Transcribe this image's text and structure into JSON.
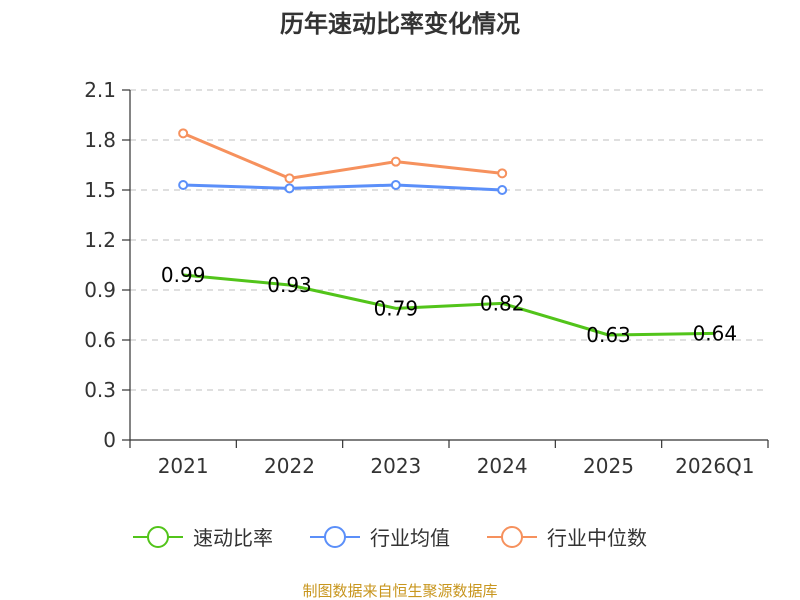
{
  "chart_data": {
    "type": "line",
    "title": "历年速动比率变化情况",
    "categories": [
      "2021",
      "2022",
      "2023",
      "2024",
      "2025",
      "2026Q1"
    ],
    "y_ticks": [
      "0",
      "0.3",
      "0.6",
      "0.9",
      "1.2",
      "1.5",
      "1.8",
      "2.1"
    ],
    "ylim": [
      0,
      2.1
    ],
    "grid": true,
    "legend_position": "bottom",
    "series": [
      {
        "name": "速动比率",
        "color": "#52c41a",
        "values": [
          0.99,
          0.93,
          0.79,
          0.82,
          0.63,
          0.64
        ],
        "data_labels": [
          "0.99",
          "0.93",
          "0.79",
          "0.82",
          "0.63",
          "0.64"
        ]
      },
      {
        "name": "行业均值",
        "color": "#5b8ff9",
        "values": [
          1.53,
          1.51,
          1.53,
          1.5,
          null,
          null
        ]
      },
      {
        "name": "行业中位数",
        "color": "#f6915d",
        "values": [
          1.84,
          1.57,
          1.67,
          1.6,
          null,
          null
        ]
      }
    ],
    "source": "制图数据来自恒生聚源数据库"
  }
}
